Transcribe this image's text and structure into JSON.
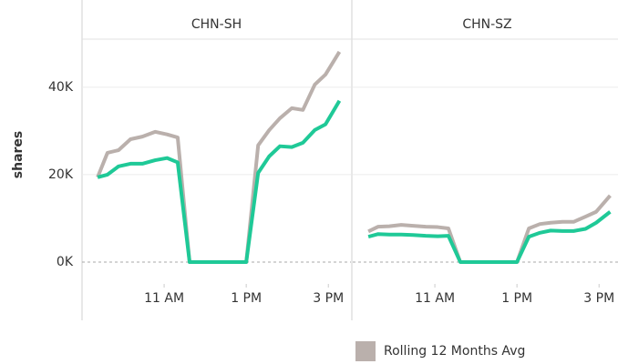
{
  "chart_data": [
    {
      "type": "line",
      "title": "CHN-SH",
      "y_label": "shares",
      "x": [
        9.38,
        9.62,
        9.89,
        10.18,
        10.47,
        10.78,
        11.07,
        11.33,
        11.62,
        13.0,
        13.29,
        13.56,
        13.82,
        14.11,
        14.38,
        14.67,
        14.93,
        15.27
      ],
      "series": [
        {
          "name": "Rolling 12 Months Avg",
          "color": "#bab0ac",
          "values": [
            19400,
            25000,
            25600,
            28100,
            28700,
            29800,
            29200,
            28500,
            0,
            0,
            26700,
            30200,
            32900,
            35200,
            34800,
            40600,
            42900,
            48100
          ]
        },
        {
          "color": "#1fc997",
          "values": [
            19400,
            20000,
            21900,
            22500,
            22500,
            23300,
            23800,
            22800,
            0,
            0,
            20400,
            24200,
            26500,
            26300,
            27300,
            30200,
            31500,
            36900
          ]
        }
      ],
      "xlim": [
        9,
        15.55
      ],
      "xticks": [
        {
          "value": 11,
          "label": "11 AM"
        },
        {
          "value": 13,
          "label": "1 PM"
        },
        {
          "value": 15,
          "label": "3 PM"
        }
      ],
      "ylim": [
        -5000,
        51000
      ],
      "yticks": [
        {
          "value": 0,
          "label": "0K"
        },
        {
          "value": 20000,
          "label": "20K"
        },
        {
          "value": 40000,
          "label": "40K"
        }
      ],
      "grid": true
    },
    {
      "type": "line",
      "title": "CHN-SZ",
      "x": [
        9.38,
        9.62,
        9.89,
        10.18,
        10.47,
        10.78,
        11.07,
        11.33,
        11.62,
        13.0,
        13.29,
        13.56,
        13.82,
        14.11,
        14.38,
        14.67,
        14.93,
        15.27
      ],
      "series": [
        {
          "color": "#bab0ac",
          "values": [
            7000,
            8100,
            8200,
            8500,
            8300,
            8100,
            8000,
            7700,
            0,
            0,
            7700,
            8700,
            9000,
            9200,
            9200,
            10400,
            11500,
            15200
          ]
        },
        {
          "color": "#1fc997",
          "values": [
            5800,
            6400,
            6300,
            6300,
            6200,
            6000,
            5900,
            6000,
            0,
            0,
            5800,
            6700,
            7200,
            7100,
            7100,
            7600,
            9000,
            11500
          ]
        }
      ],
      "xlim": [
        9,
        15.55
      ],
      "xticks": [
        {
          "value": 11,
          "label": "11 AM"
        },
        {
          "value": 13,
          "label": "1 PM"
        },
        {
          "value": 15,
          "label": "3 PM"
        }
      ],
      "ylim": [
        -5000,
        51000
      ],
      "grid": true
    }
  ]
}
